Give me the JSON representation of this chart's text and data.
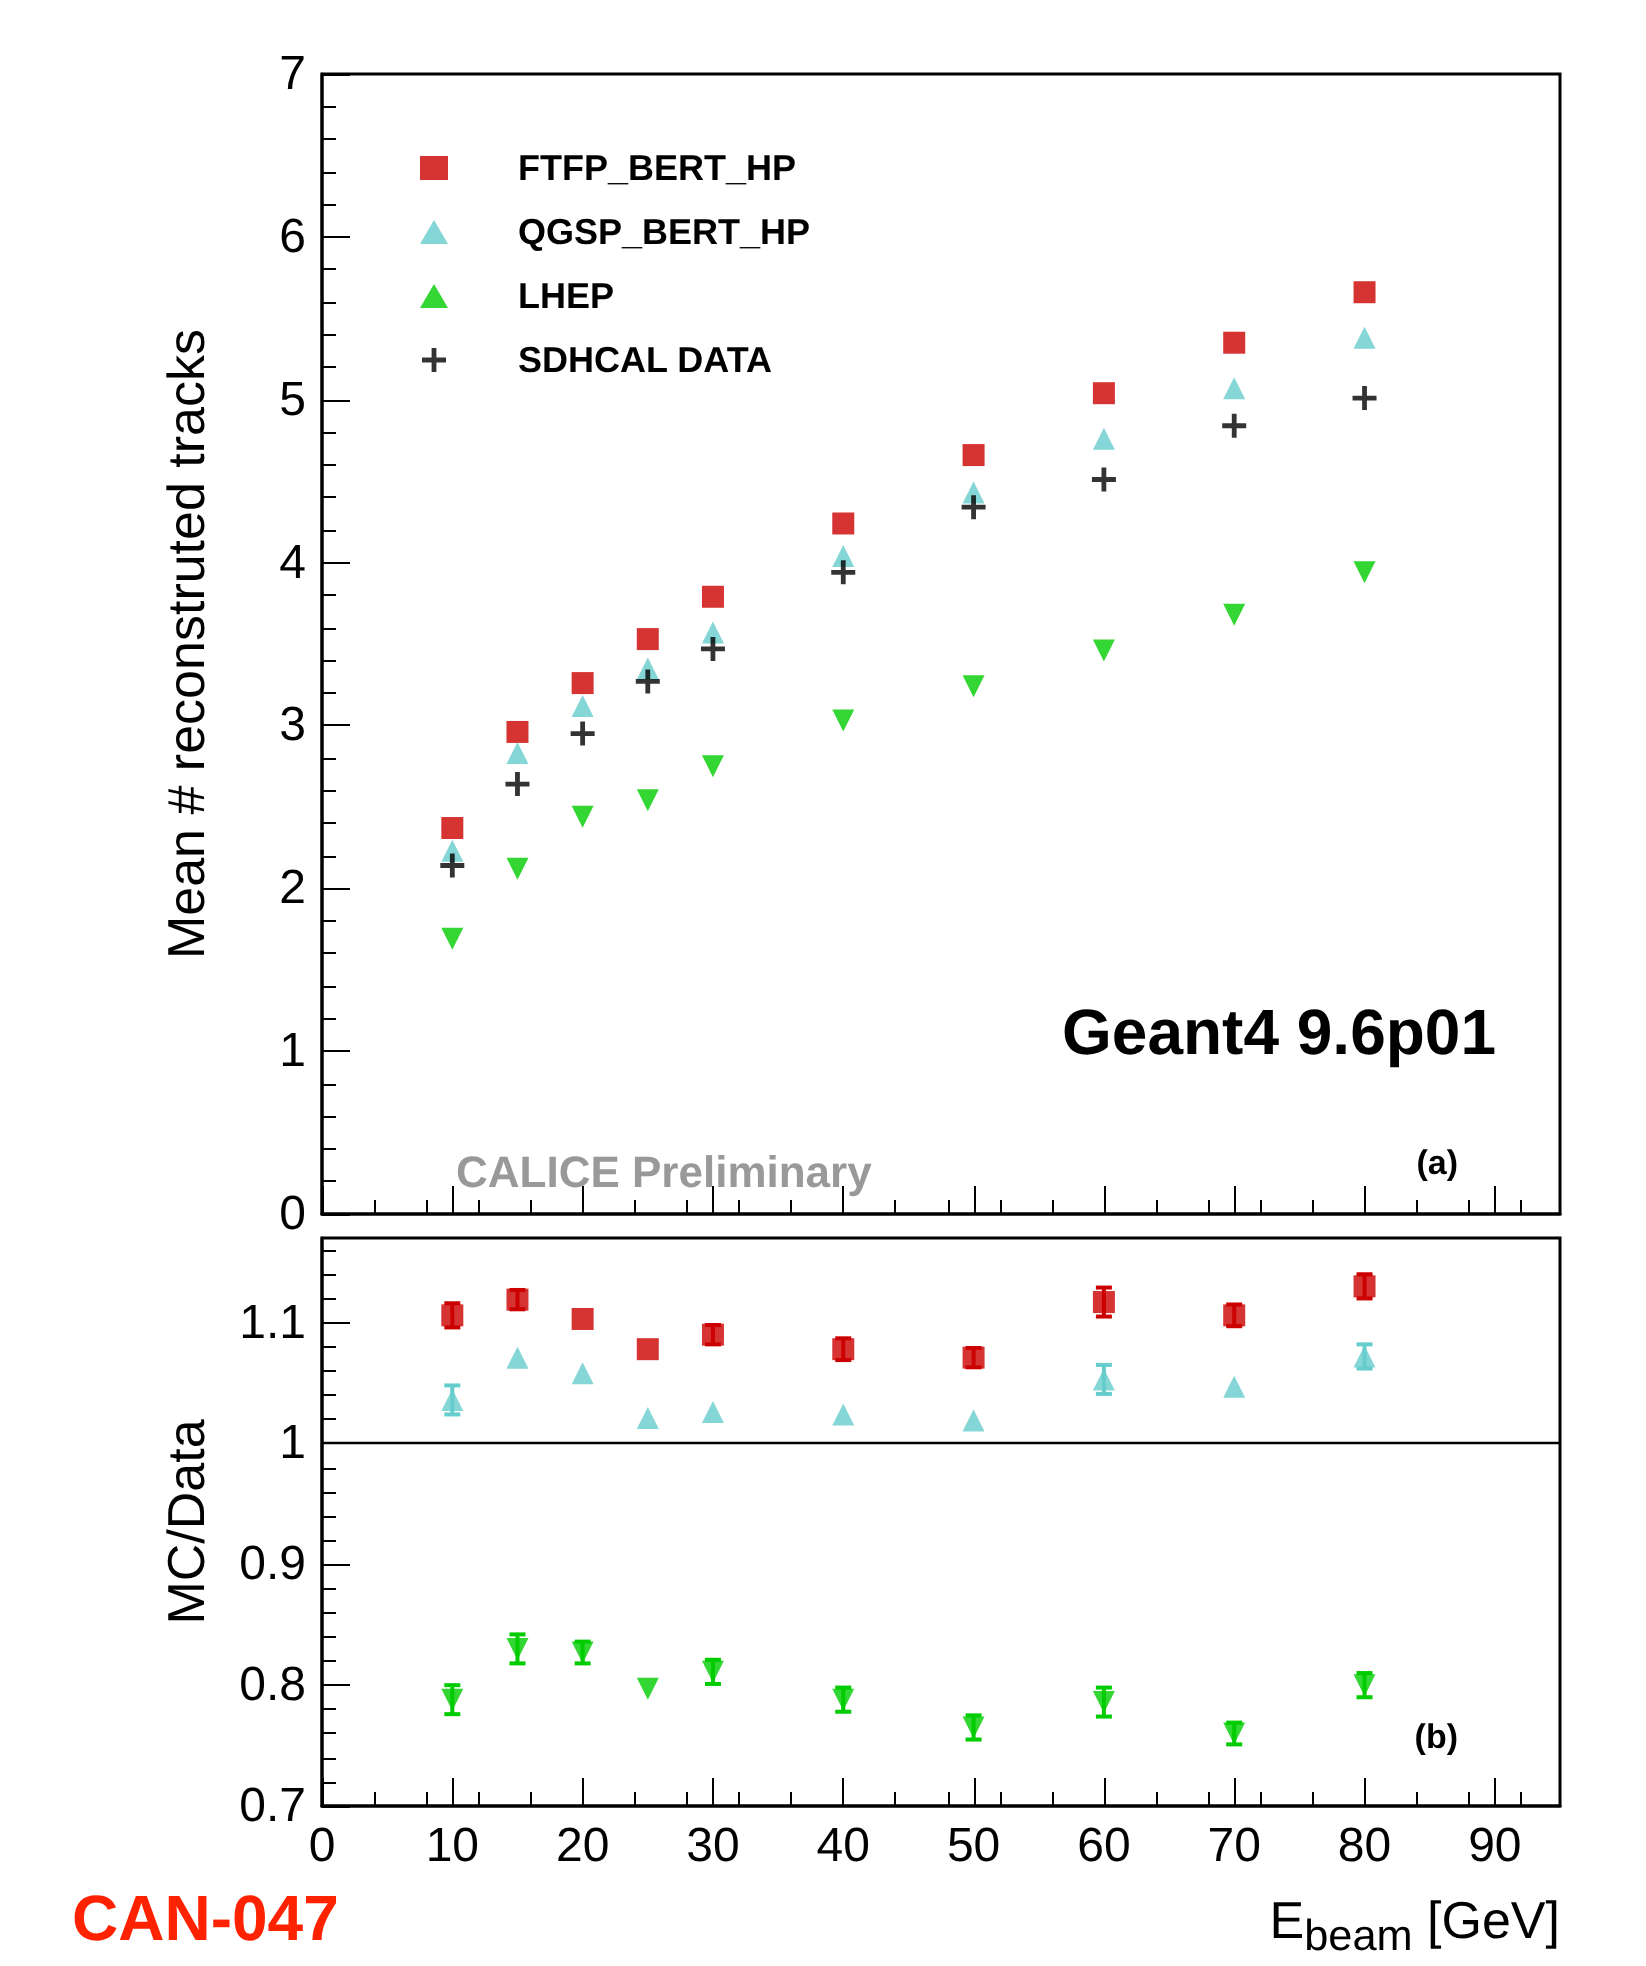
{
  "chart_data": [
    {
      "type": "scatter",
      "ylabel": "Mean # reconstruted tracks",
      "x": [
        10,
        15,
        20,
        25,
        30,
        40,
        50,
        60,
        70,
        80
      ],
      "xlim": [
        0,
        95
      ],
      "xticks": [
        0,
        10,
        20,
        30,
        40,
        50,
        60,
        70,
        80,
        90
      ],
      "ylim": [
        0,
        7
      ],
      "yticks": [
        0,
        1,
        2,
        3,
        4,
        5,
        6,
        7
      ],
      "tick_labels": "y",
      "legend": "top left",
      "series": [
        {
          "name": "FTFP_BERT_HP",
          "color": "#cc0000",
          "marker": "square",
          "values": [
            2.37,
            2.96,
            3.26,
            3.53,
            3.79,
            4.24,
            4.66,
            5.04,
            5.35,
            5.66
          ]
        },
        {
          "name": "QGSP_BERT_HP",
          "color": "#66cccc",
          "marker": "triangle",
          "values": [
            2.23,
            2.83,
            3.12,
            3.35,
            3.57,
            4.04,
            4.43,
            4.76,
            5.07,
            5.38
          ]
        },
        {
          "name": "LHEP",
          "color": "#00cc00",
          "marker": "triangle-down",
          "values": [
            1.69,
            2.12,
            2.44,
            2.54,
            2.75,
            3.03,
            3.24,
            3.46,
            3.68,
            3.94
          ]
        },
        {
          "name": "SDHCAL DATA",
          "color": "#000000",
          "marker": "cross",
          "values": [
            2.14,
            2.64,
            2.95,
            3.27,
            3.47,
            3.94,
            4.34,
            4.51,
            4.84,
            5.01
          ]
        }
      ],
      "annotations": [
        "Geant4 9.6p01",
        "CALICE Preliminary",
        "(a)"
      ]
    },
    {
      "type": "scatter",
      "ylabel": "MC/Data",
      "xlabel": "E$_{beam}$ [GeV]",
      "x": [
        10,
        15,
        20,
        25,
        30,
        40,
        50,
        60,
        70,
        80
      ],
      "xlim": [
        0,
        95
      ],
      "xticks": [
        0,
        10,
        20,
        30,
        40,
        50,
        60,
        70,
        80,
        90
      ],
      "ylim": [
        0.7,
        1.17
      ],
      "yticks": [
        0.7,
        0.8,
        0.9,
        1,
        1.1
      ],
      "series": [
        {
          "color": "#cc0000",
          "marker": "square",
          "values": [
            1.106,
            1.119,
            1.103,
            1.078,
            1.09,
            1.078,
            1.071,
            1.117,
            1.106,
            1.13
          ],
          "errors": [
            0.01,
            0.008,
            null,
            null,
            0.008,
            0.009,
            0.008,
            0.012,
            0.009,
            0.01
          ]
        },
        {
          "color": "#66cccc",
          "marker": "triangle",
          "values": [
            1.036,
            1.071,
            1.058,
            1.021,
            1.026,
            1.024,
            1.019,
            1.053,
            1.047,
            1.072
          ],
          "errors": [
            0.012,
            null,
            null,
            null,
            null,
            null,
            null,
            0.012,
            null,
            0.01
          ]
        },
        {
          "color": "#00cc00",
          "marker": "triangle-down",
          "values": [
            0.788,
            0.83,
            0.827,
            0.797,
            0.811,
            0.788,
            0.765,
            0.786,
            0.76,
            0.8
          ],
          "errors": [
            0.012,
            0.012,
            0.009,
            null,
            0.01,
            0.01,
            0.01,
            0.012,
            0.009,
            0.01
          ]
        }
      ],
      "ref_lines": [
        {
          "axis": "y",
          "value": 1,
          "color": "#000000"
        }
      ],
      "annotations": [
        "(b)",
        "CAN-047"
      ]
    }
  ]
}
